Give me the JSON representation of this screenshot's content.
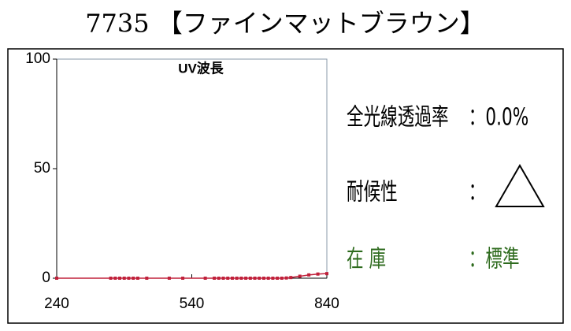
{
  "chart_data": {
    "type": "line",
    "title": "7735 【ファインマットブラウン】",
    "annotation": "UV波長",
    "x": [
      240,
      360,
      370,
      380,
      390,
      400,
      410,
      420,
      440,
      490,
      520,
      570,
      590,
      600,
      610,
      620,
      630,
      640,
      650,
      660,
      670,
      680,
      690,
      700,
      710,
      720,
      730,
      740,
      750,
      760,
      780,
      800,
      820,
      840
    ],
    "values": [
      0,
      0,
      0,
      0,
      0,
      0,
      0,
      0,
      0,
      0,
      0,
      0,
      0,
      0,
      0,
      0,
      0,
      0,
      0,
      0,
      0,
      0,
      0,
      0,
      0,
      0,
      0,
      0,
      0.1,
      0.3,
      0.9,
      1.5,
      1.9,
      2.1
    ],
    "color": "#c0203a",
    "xlim": [
      240,
      840
    ],
    "ylim": [
      0,
      100
    ],
    "xticks": [
      240,
      540,
      840
    ],
    "yticks": [
      0,
      50,
      100
    ]
  },
  "info": [
    {
      "label": "全光線透過率",
      "value": "：0.0%"
    },
    {
      "label": "耐候性",
      "value": "："
    },
    {
      "label": "在 庫",
      "value": "：標準"
    }
  ]
}
